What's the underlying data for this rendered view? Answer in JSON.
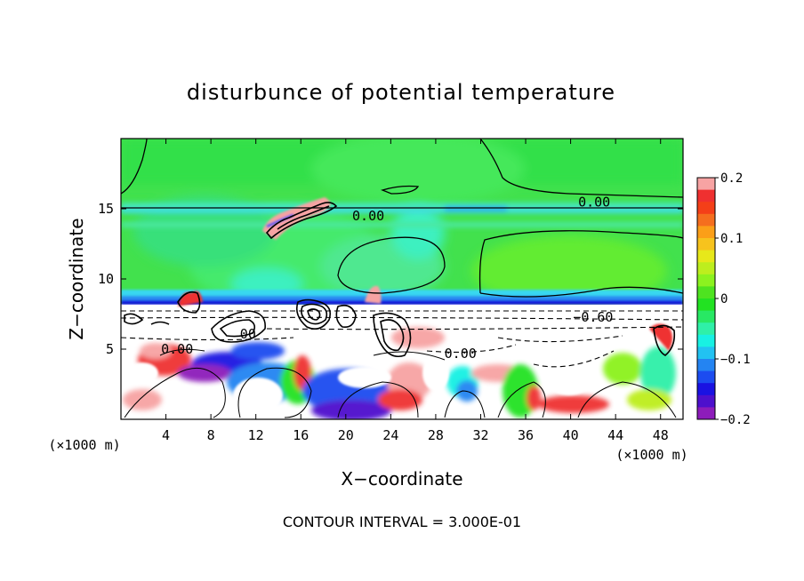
{
  "chart_data": {
    "type": "heatmap",
    "title": "disturbunce of potential temperature",
    "xlabel": "X−coordinate",
    "ylabel": "Z−coordinate",
    "x_unit": "(×1000 m)",
    "z_unit": "(×1000 m)",
    "x_ticks": [
      4,
      8,
      12,
      16,
      20,
      24,
      28,
      32,
      36,
      40,
      44,
      48
    ],
    "z_ticks": [
      5,
      10,
      15
    ],
    "xlim": [
      0,
      50
    ],
    "zlim": [
      0,
      20
    ],
    "colorbar": {
      "ticks": [
        "0.2",
        "0.1",
        "0",
        "−0.1",
        "−0.2"
      ],
      "range": [
        -0.2,
        0.2
      ],
      "colors": [
        "#f7a3a3",
        "#ef3030",
        "#f43f18",
        "#f56e1e",
        "#fb9f18",
        "#f7c31d",
        "#e7e81a",
        "#bdee1e",
        "#8cf21f",
        "#4ee320",
        "#22e222",
        "#28e864",
        "#2ff0a8",
        "#18f1e3",
        "#22c2f2",
        "#2484f2",
        "#1c4cf0",
        "#1a12e2",
        "#4d10cd",
        "#8d1cba"
      ]
    },
    "contour_labels": [
      {
        "text": "0.00",
        "x": 22.0,
        "z": 14.3
      },
      {
        "text": "0.00",
        "x": 42.1,
        "z": 15.3
      },
      {
        "text": "−0.60",
        "x": 42.0,
        "z": 7.1
      },
      {
        "text": "0.00",
        "x": 5.0,
        "z": 4.8
      },
      {
        "text": "0.00",
        "x": 30.2,
        "z": 4.5
      },
      {
        "text": "00",
        "x": 11.3,
        "z": 5.9
      }
    ],
    "annotation": "CONTOUR INTERVAL = 3.000E-01"
  }
}
